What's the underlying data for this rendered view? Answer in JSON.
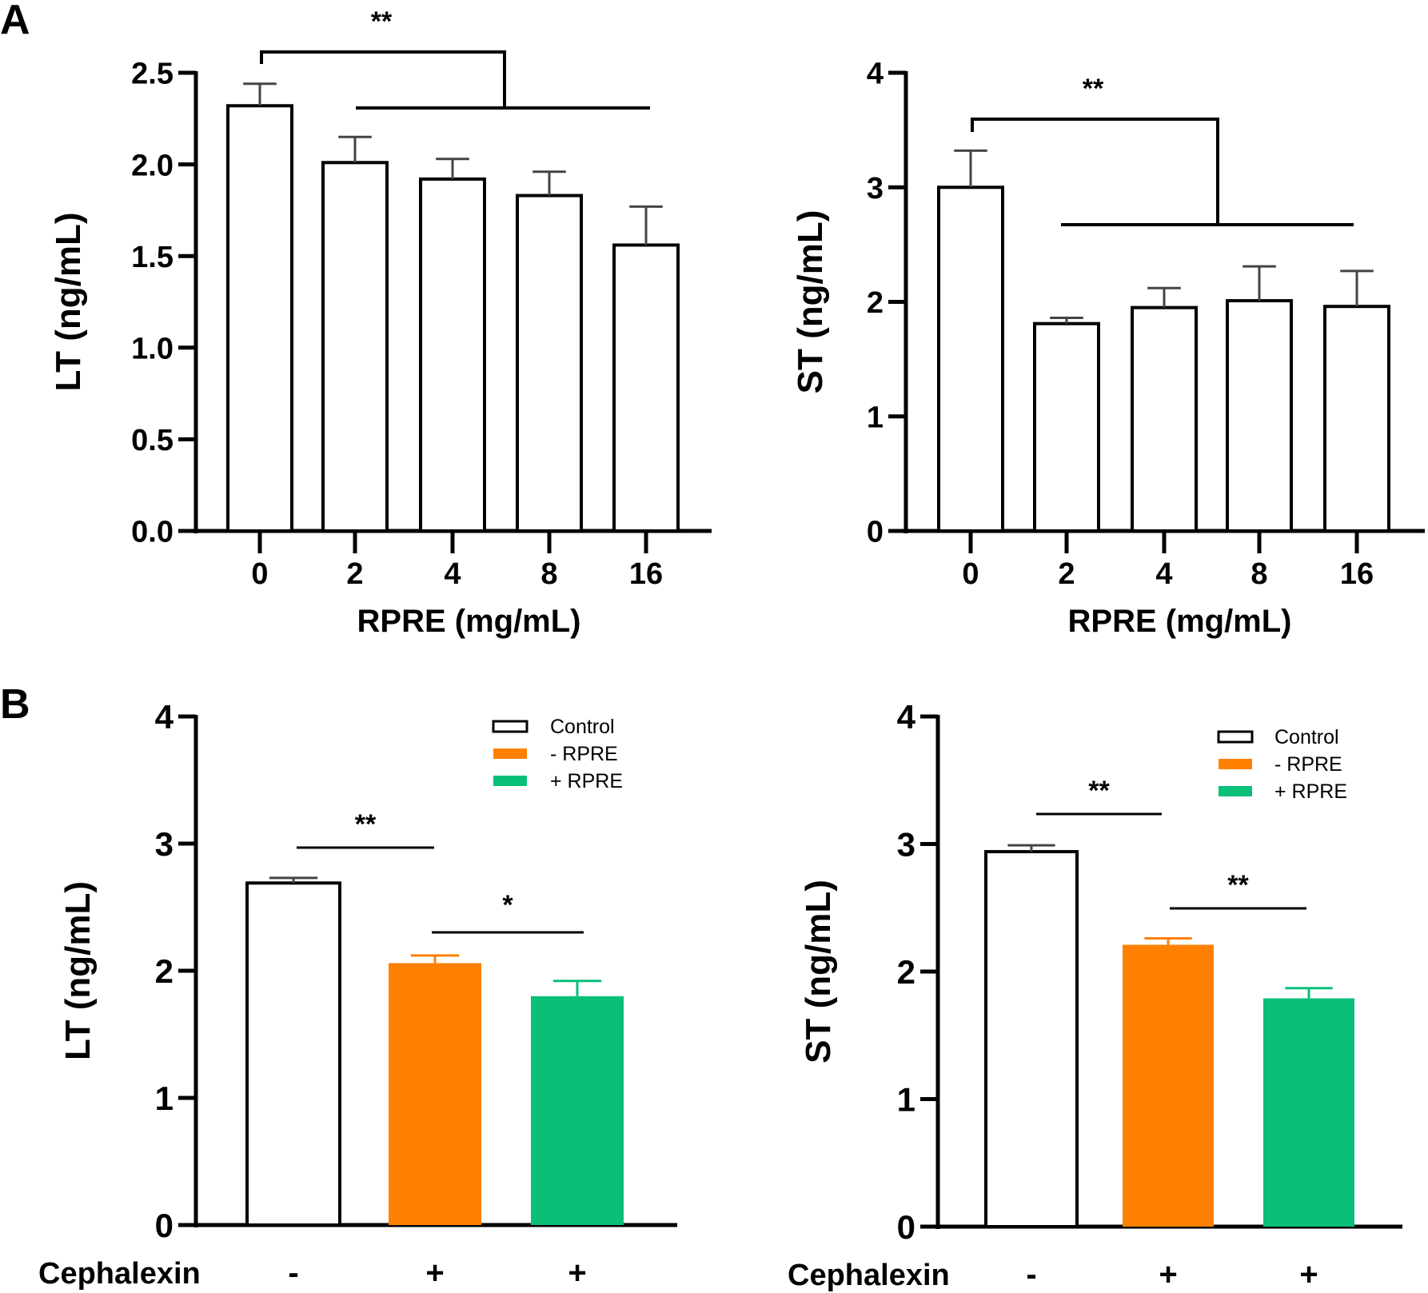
{
  "panel_labels": [
    "A",
    "B"
  ],
  "chart_data": [
    {
      "id": "A-LT",
      "type": "bar",
      "panel": "A",
      "title": "",
      "xlabel": "RPRE (mg/mL)",
      "ylabel": "LT (ng/mL)",
      "categories": [
        "0",
        "2",
        "4",
        "8",
        "16"
      ],
      "values": [
        2.32,
        2.01,
        1.92,
        1.83,
        1.56
      ],
      "errors": [
        0.12,
        0.14,
        0.11,
        0.13,
        0.21
      ],
      "ylim": [
        0,
        2.5
      ],
      "yticks": [
        0,
        0.5,
        1.0,
        1.5,
        2.0,
        2.5
      ],
      "ytick_labels": [
        "0.0",
        "0.5",
        "1.0",
        "1.5",
        "2.0",
        "2.5"
      ],
      "bar_fill": [
        "#ffffff",
        "#ffffff",
        "#ffffff",
        "#ffffff",
        "#ffffff"
      ],
      "bar_stroke": "#000000",
      "grid": false,
      "annotations": [
        {
          "type": "bracket",
          "text": "**",
          "from": "0",
          "to": [
            "2",
            "16"
          ]
        }
      ]
    },
    {
      "id": "A-ST",
      "type": "bar",
      "panel": "A",
      "title": "",
      "xlabel": "RPRE (mg/mL)",
      "ylabel": "ST (ng/mL)",
      "categories": [
        "0",
        "2",
        "4",
        "8",
        "16"
      ],
      "values": [
        3.0,
        1.81,
        1.95,
        2.01,
        1.96
      ],
      "errors": [
        0.32,
        0.05,
        0.17,
        0.3,
        0.31
      ],
      "ylim": [
        0,
        4
      ],
      "yticks": [
        0,
        1,
        2,
        3,
        4
      ],
      "ytick_labels": [
        "0",
        "1",
        "2",
        "3",
        "4"
      ],
      "bar_fill": [
        "#ffffff",
        "#ffffff",
        "#ffffff",
        "#ffffff",
        "#ffffff"
      ],
      "bar_stroke": "#000000",
      "grid": false,
      "annotations": [
        {
          "type": "bracket",
          "text": "**",
          "from": "0",
          "to": [
            "2",
            "16"
          ]
        }
      ]
    },
    {
      "id": "B-LT",
      "type": "bar",
      "panel": "B",
      "title": "",
      "xlabel": "Cephalexin",
      "ylabel": "LT (ng/mL)",
      "categories": [
        "-",
        "+",
        "+"
      ],
      "series_names": [
        "Control",
        "- RPRE",
        "+ RPRE"
      ],
      "values": [
        2.69,
        2.06,
        1.8
      ],
      "errors": [
        0.04,
        0.06,
        0.12
      ],
      "ylim": [
        0,
        4
      ],
      "yticks": [
        0,
        1,
        2,
        3,
        4
      ],
      "ytick_labels": [
        "0",
        "1",
        "2",
        "3",
        "4"
      ],
      "bar_fill": [
        "#ffffff",
        "#ff8000",
        "#0abf78"
      ],
      "bar_stroke": "#000000",
      "grid": false,
      "legend": {
        "position": "top-right",
        "entries": [
          {
            "label": "Control",
            "color": "#ffffff",
            "outline": true
          },
          {
            "label": "- RPRE",
            "color": "#ff8000",
            "outline": false
          },
          {
            "label": "+ RPRE",
            "color": "#0abf78",
            "outline": false
          }
        ]
      },
      "annotations": [
        {
          "type": "line",
          "text": "**",
          "from": 0,
          "to": 1
        },
        {
          "type": "line",
          "text": "*",
          "from": 1,
          "to": 2
        }
      ]
    },
    {
      "id": "B-ST",
      "type": "bar",
      "panel": "B",
      "title": "",
      "xlabel": "Cephalexin",
      "ylabel": "ST (ng/mL)",
      "categories": [
        "-",
        "+",
        "+"
      ],
      "series_names": [
        "Control",
        "- RPRE",
        "+ RPRE"
      ],
      "values": [
        2.94,
        2.21,
        1.79
      ],
      "errors": [
        0.05,
        0.05,
        0.08
      ],
      "ylim": [
        0,
        4
      ],
      "yticks": [
        0,
        1,
        2,
        3,
        4
      ],
      "ytick_labels": [
        "0",
        "1",
        "2",
        "3",
        "4"
      ],
      "bar_fill": [
        "#ffffff",
        "#ff8000",
        "#0abf78"
      ],
      "bar_stroke": "#000000",
      "grid": false,
      "legend": {
        "position": "top-right",
        "entries": [
          {
            "label": "Control",
            "color": "#ffffff",
            "outline": true
          },
          {
            "label": "- RPRE",
            "color": "#ff8000",
            "outline": false
          },
          {
            "label": "+ RPRE",
            "color": "#0abf78",
            "outline": false
          }
        ]
      },
      "annotations": [
        {
          "type": "line",
          "text": "**",
          "from": 0,
          "to": 1
        },
        {
          "type": "line",
          "text": "**",
          "from": 1,
          "to": 2
        }
      ]
    }
  ]
}
